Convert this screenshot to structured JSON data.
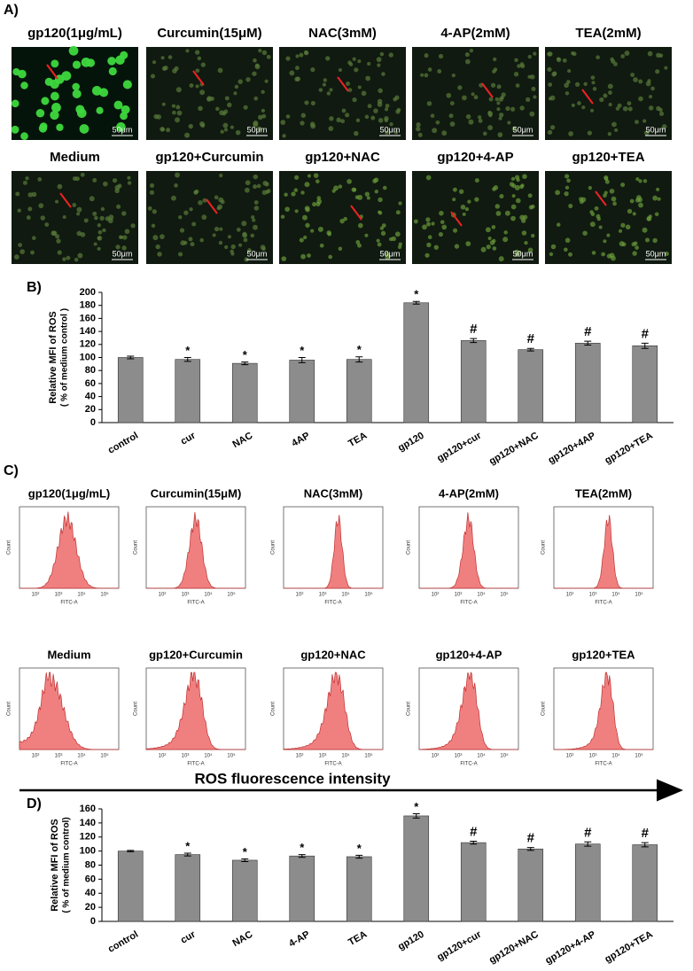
{
  "panel_labels": [
    "A)",
    "B)",
    "C)",
    "D)"
  ],
  "microscopy": {
    "titles": [
      "gp120(1μg/mL)",
      "Curcumin(15μM)",
      "NAC(3mM)",
      "4-AP(2mM)",
      "TEA(2mM)",
      "Medium",
      "gp120+Curcumin",
      "gp120+NAC",
      "gp120+4-AP",
      "gp120+TEA"
    ],
    "scale_bar": "50μm"
  },
  "flow": {
    "titles": [
      "gp120(1μg/mL)",
      "Curcumin(15μM)",
      "NAC(3mM)",
      "4-AP(2mM)",
      "TEA(2mM)",
      "Medium",
      "gp120+Curcumin",
      "gp120+NAC",
      "gp120+4-AP",
      "gp120+TEA"
    ],
    "ylabel": "Count",
    "xlabel": "FITC-A",
    "xticks": [
      "10²",
      "10³",
      "10⁴",
      "10⁵"
    ],
    "axis_title": "ROS fluorescence intensity"
  },
  "chart_data": [
    {
      "type": "bar",
      "ylabel": "Relative MFI of ROS",
      "ylabel_sub": "( % of medium control )",
      "categories": [
        "control",
        "cur",
        "NAC",
        "4AP",
        "TEA",
        "gp120",
        "gp120+cur",
        "gp120+NAC",
        "gp120+4AP",
        "gp120+TEA"
      ],
      "values": [
        100,
        97,
        91,
        96,
        97,
        184,
        126,
        112,
        122,
        118
      ],
      "errors": [
        2,
        3,
        2,
        4,
        4,
        2,
        3,
        2,
        3,
        4
      ],
      "annotations": [
        null,
        "*",
        "*",
        "*",
        "*",
        "*",
        "#",
        "#",
        "#",
        "#"
      ],
      "color": "#8c8c8c",
      "ylim": [
        0,
        200
      ],
      "yticks": [
        0,
        20,
        40,
        60,
        80,
        100,
        120,
        140,
        160,
        180,
        200
      ]
    },
    {
      "type": "bar",
      "ylabel": "Relative MFI of ROS",
      "ylabel_sub": "( % of medium control)",
      "categories": [
        "control",
        "cur",
        "NAC",
        "4-AP",
        "TEA",
        "gp120",
        "gp120+cur",
        "gp120+NAC",
        "gp120+4-AP",
        "gp120+TEA"
      ],
      "values": [
        100,
        95,
        87,
        93,
        92,
        150,
        112,
        103,
        110,
        109
      ],
      "errors": [
        1,
        2,
        2,
        2,
        2,
        3,
        2,
        2,
        3,
        3
      ],
      "annotations": [
        null,
        "*",
        "*",
        "*",
        "*",
        "*",
        "#",
        "#",
        "#",
        "#"
      ],
      "color": "#8c8c8c",
      "ylim": [
        0,
        160
      ],
      "yticks": [
        0,
        20,
        40,
        60,
        80,
        100,
        120,
        140,
        160
      ]
    }
  ]
}
